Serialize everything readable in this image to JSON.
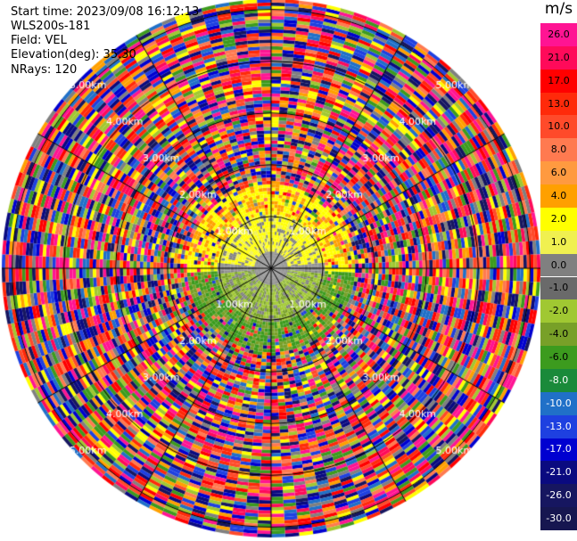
{
  "info": {
    "start_time": "Start time: 2023/09/08 16:12:13",
    "instrument": "WLS200s-181",
    "field": "Field: VEL",
    "elevation": "Elevation(deg): 35.30",
    "nrays": "NRays: 120"
  },
  "colorbar": {
    "unit": "m/s",
    "labels": [
      "26.0",
      "21.0",
      "17.0",
      "13.0",
      "10.0",
      "8.0",
      "6.0",
      "4.0",
      "2.0",
      "1.0",
      "0.0",
      "-1.0",
      "-2.0",
      "-4.0",
      "-6.0",
      "-8.0",
      "-10.0",
      "-13.0",
      "-17.0",
      "-21.0",
      "-26.0",
      "-30.0"
    ],
    "colors": [
      "#ff1493",
      "#ff0a5a",
      "#ff0000",
      "#ff2a0a",
      "#ff4a2a",
      "#ff7a50",
      "#ff9a40",
      "#ffa000",
      "#ffff00",
      "#f0f050",
      "#808080",
      "#6a6a6a",
      "#a0c832",
      "#78a028",
      "#3c9b1e",
      "#1a8a3a",
      "#2070c8",
      "#1e40e0",
      "#0000d0",
      "#0a0a80",
      "#161660",
      "#161650"
    ]
  },
  "chart_data": {
    "type": "heatmap",
    "projection": "polar-ppi",
    "field": "VEL",
    "units": "m/s",
    "nrays": 120,
    "range_rings": [
      {
        "label": "1.00km",
        "range_km": 1.0
      },
      {
        "label": "2.00km",
        "range_km": 2.0
      },
      {
        "label": "3.00km",
        "range_km": 3.0
      },
      {
        "label": "4.00km",
        "range_km": 4.0
      },
      {
        "label": "5.00km",
        "range_km": 5.0
      }
    ],
    "max_range_km": 5.2,
    "regions": [
      {
        "description_range_km": [
          0,
          0.3
        ],
        "velocity_ms": 0.0
      },
      {
        "description_range_km": [
          0.3,
          1.0
        ],
        "velocity_ms_north": 1.5,
        "velocity_ms_south": -2.0
      },
      {
        "description_range_km": [
          1.0,
          1.6
        ],
        "velocity_ms_north": 4.0,
        "velocity_ms_south": -4.0
      },
      {
        "description_range_km": [
          1.6,
          5.2
        ],
        "velocity_ms": "noise"
      }
    ],
    "grid": true
  }
}
